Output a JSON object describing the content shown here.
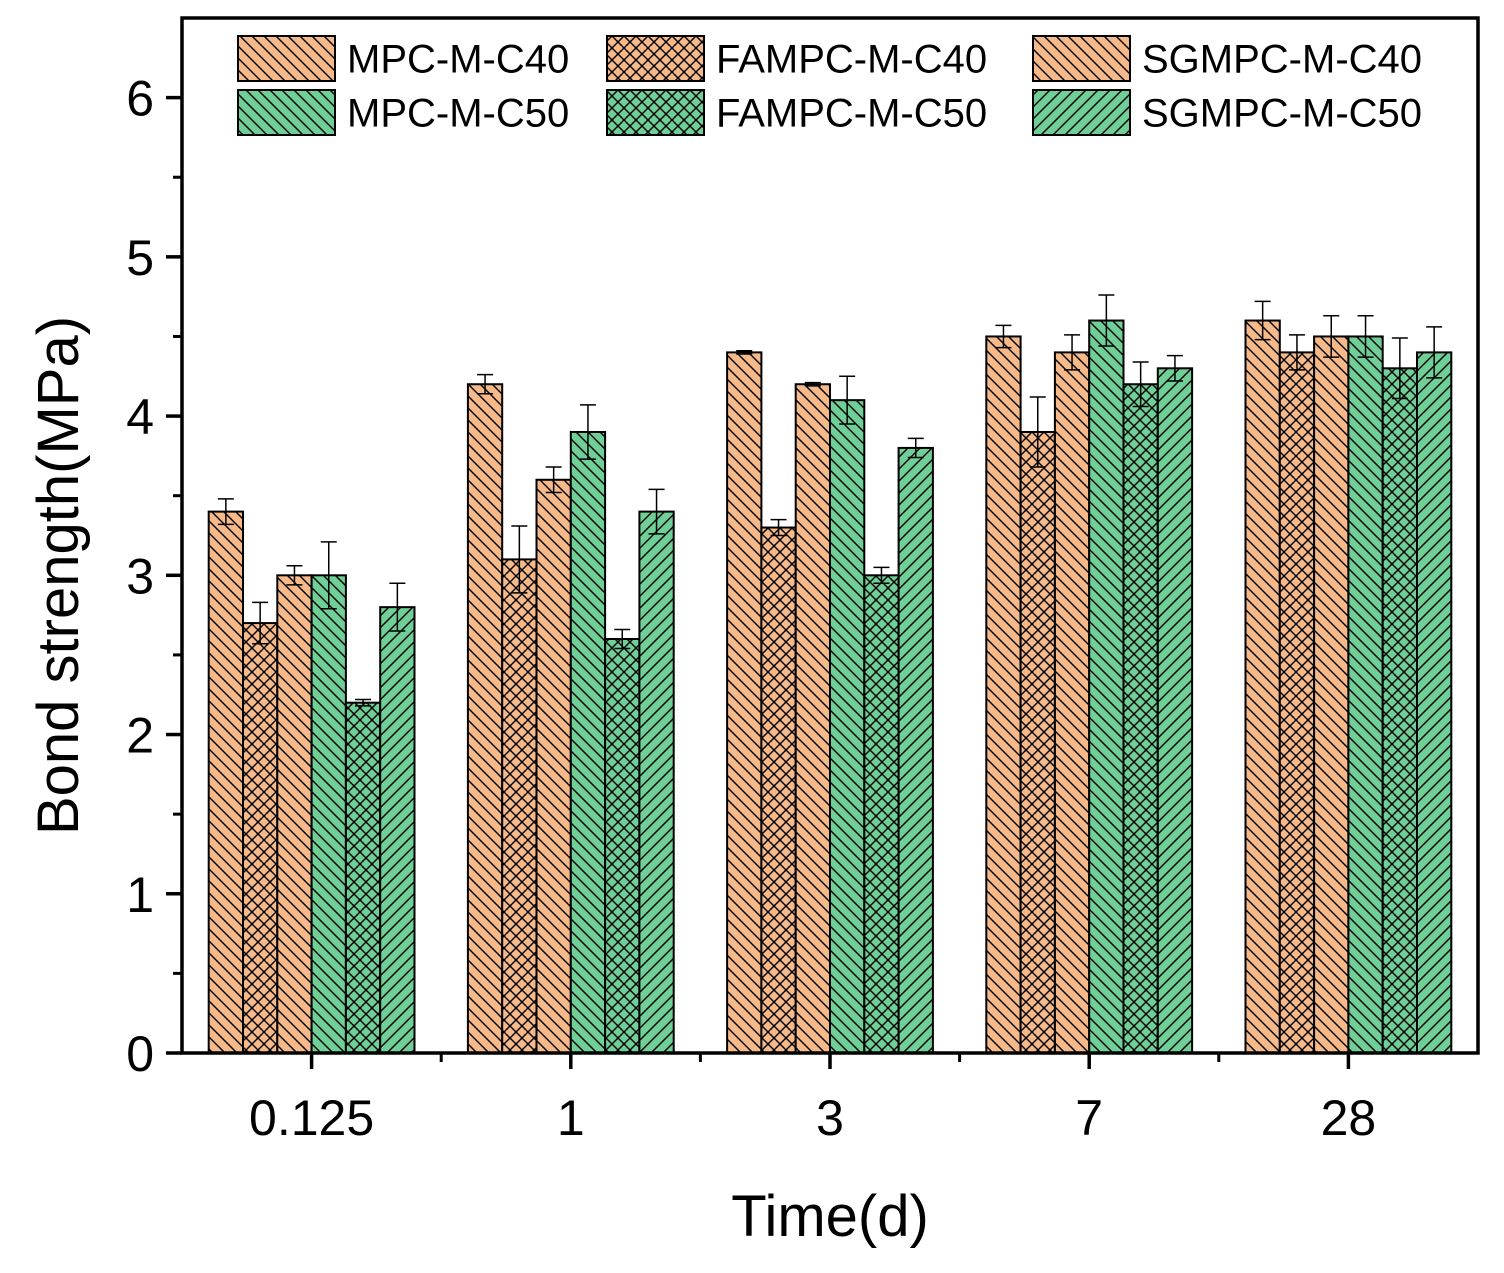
{
  "chart_data": {
    "type": "bar",
    "xlabel": "Time(d)",
    "ylabel": "Bond strength(MPa)",
    "categories": [
      "0.125",
      "1",
      "3",
      "7",
      "28"
    ],
    "ylim": [
      0,
      6.5
    ],
    "yticks": [
      "0",
      "1",
      "2",
      "3",
      "4",
      "5",
      "6"
    ],
    "grid": false,
    "legend_position": "top-right",
    "series": [
      {
        "name": "MPC-M-C40",
        "values": [
          3.4,
          4.2,
          4.4,
          4.5,
          4.6
        ],
        "errors": [
          0.08,
          0.06,
          0.01,
          0.07,
          0.12
        ],
        "color": "#f5b98a",
        "hatch": "diag-right"
      },
      {
        "name": "FAMPC-M-C40",
        "values": [
          2.7,
          3.1,
          3.3,
          3.9,
          4.4
        ],
        "errors": [
          0.13,
          0.21,
          0.05,
          0.22,
          0.11
        ],
        "color": "#f5b98a",
        "hatch": "cross"
      },
      {
        "name": "SGMPC-M-C40",
        "values": [
          3.0,
          3.6,
          4.2,
          4.4,
          4.5
        ],
        "errors": [
          0.06,
          0.08,
          0.01,
          0.11,
          0.13
        ],
        "color": "#f5b98a",
        "hatch": "diag-right"
      },
      {
        "name": "MPC-M-C50",
        "values": [
          3.0,
          3.9,
          4.1,
          4.6,
          4.5
        ],
        "errors": [
          0.21,
          0.17,
          0.15,
          0.16,
          0.13
        ],
        "color": "#6fcf97",
        "hatch": "diag-right"
      },
      {
        "name": "FAMPC-M-C50",
        "values": [
          2.2,
          2.6,
          3.0,
          4.2,
          4.3
        ],
        "errors": [
          0.02,
          0.06,
          0.05,
          0.14,
          0.19
        ],
        "color": "#6fcf97",
        "hatch": "cross"
      },
      {
        "name": "SGMPC-M-C50",
        "values": [
          2.8,
          3.4,
          3.8,
          4.3,
          4.4
        ],
        "errors": [
          0.15,
          0.14,
          0.06,
          0.08,
          0.16
        ],
        "color": "#6fcf97",
        "hatch": "diag-left"
      }
    ]
  }
}
